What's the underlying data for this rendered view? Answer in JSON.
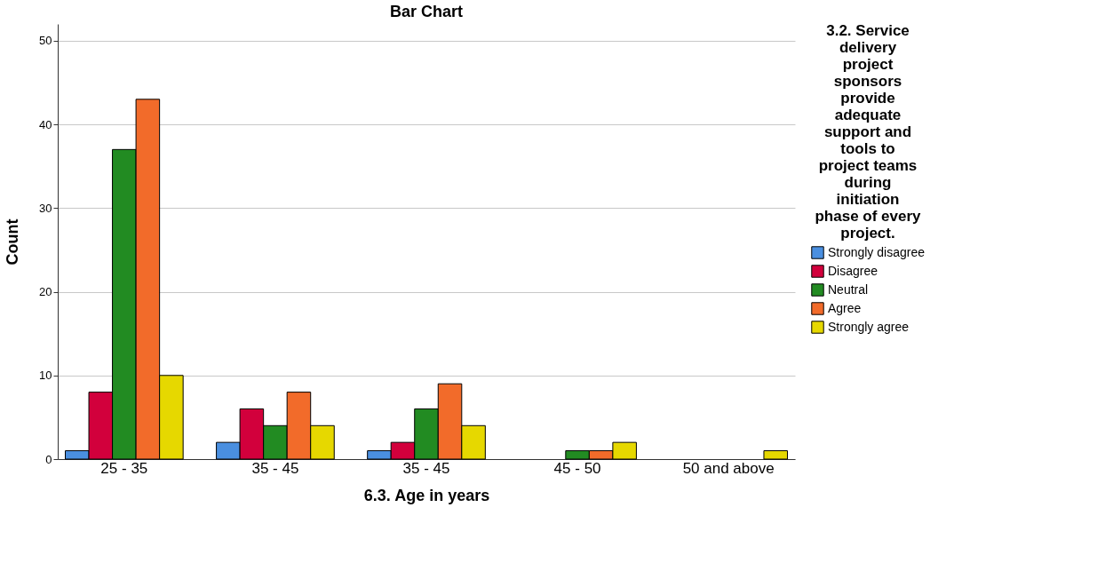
{
  "chart_data": {
    "type": "bar",
    "title": "Bar Chart",
    "xlabel": "6.3. Age in years",
    "ylabel": "Count",
    "legend_title": "3.2. Service delivery project sponsors provide adequate support and tools to project teams during initiation phase of every project.",
    "categories": [
      "25 - 35",
      "35 - 45",
      "35 - 45",
      "45 - 50",
      "50 and above"
    ],
    "series": [
      {
        "name": "Strongly disagree",
        "color": "#4a8fe0",
        "values": [
          1,
          2,
          1,
          null,
          null
        ]
      },
      {
        "name": "Disagree",
        "color": "#d2003c",
        "values": [
          8,
          6,
          2,
          null,
          null
        ]
      },
      {
        "name": "Neutral",
        "color": "#228b22",
        "values": [
          37,
          4,
          6,
          1,
          null
        ]
      },
      {
        "name": "Agree",
        "color": "#f26b2a",
        "values": [
          43,
          8,
          9,
          1,
          null
        ]
      },
      {
        "name": "Strongly agree",
        "color": "#e6d800",
        "values": [
          10,
          4,
          4,
          2,
          1
        ]
      }
    ],
    "ylim": [
      0,
      52
    ],
    "yticks": [
      0,
      10,
      20,
      30,
      40,
      50
    ],
    "grid": "y",
    "legend": "right"
  }
}
